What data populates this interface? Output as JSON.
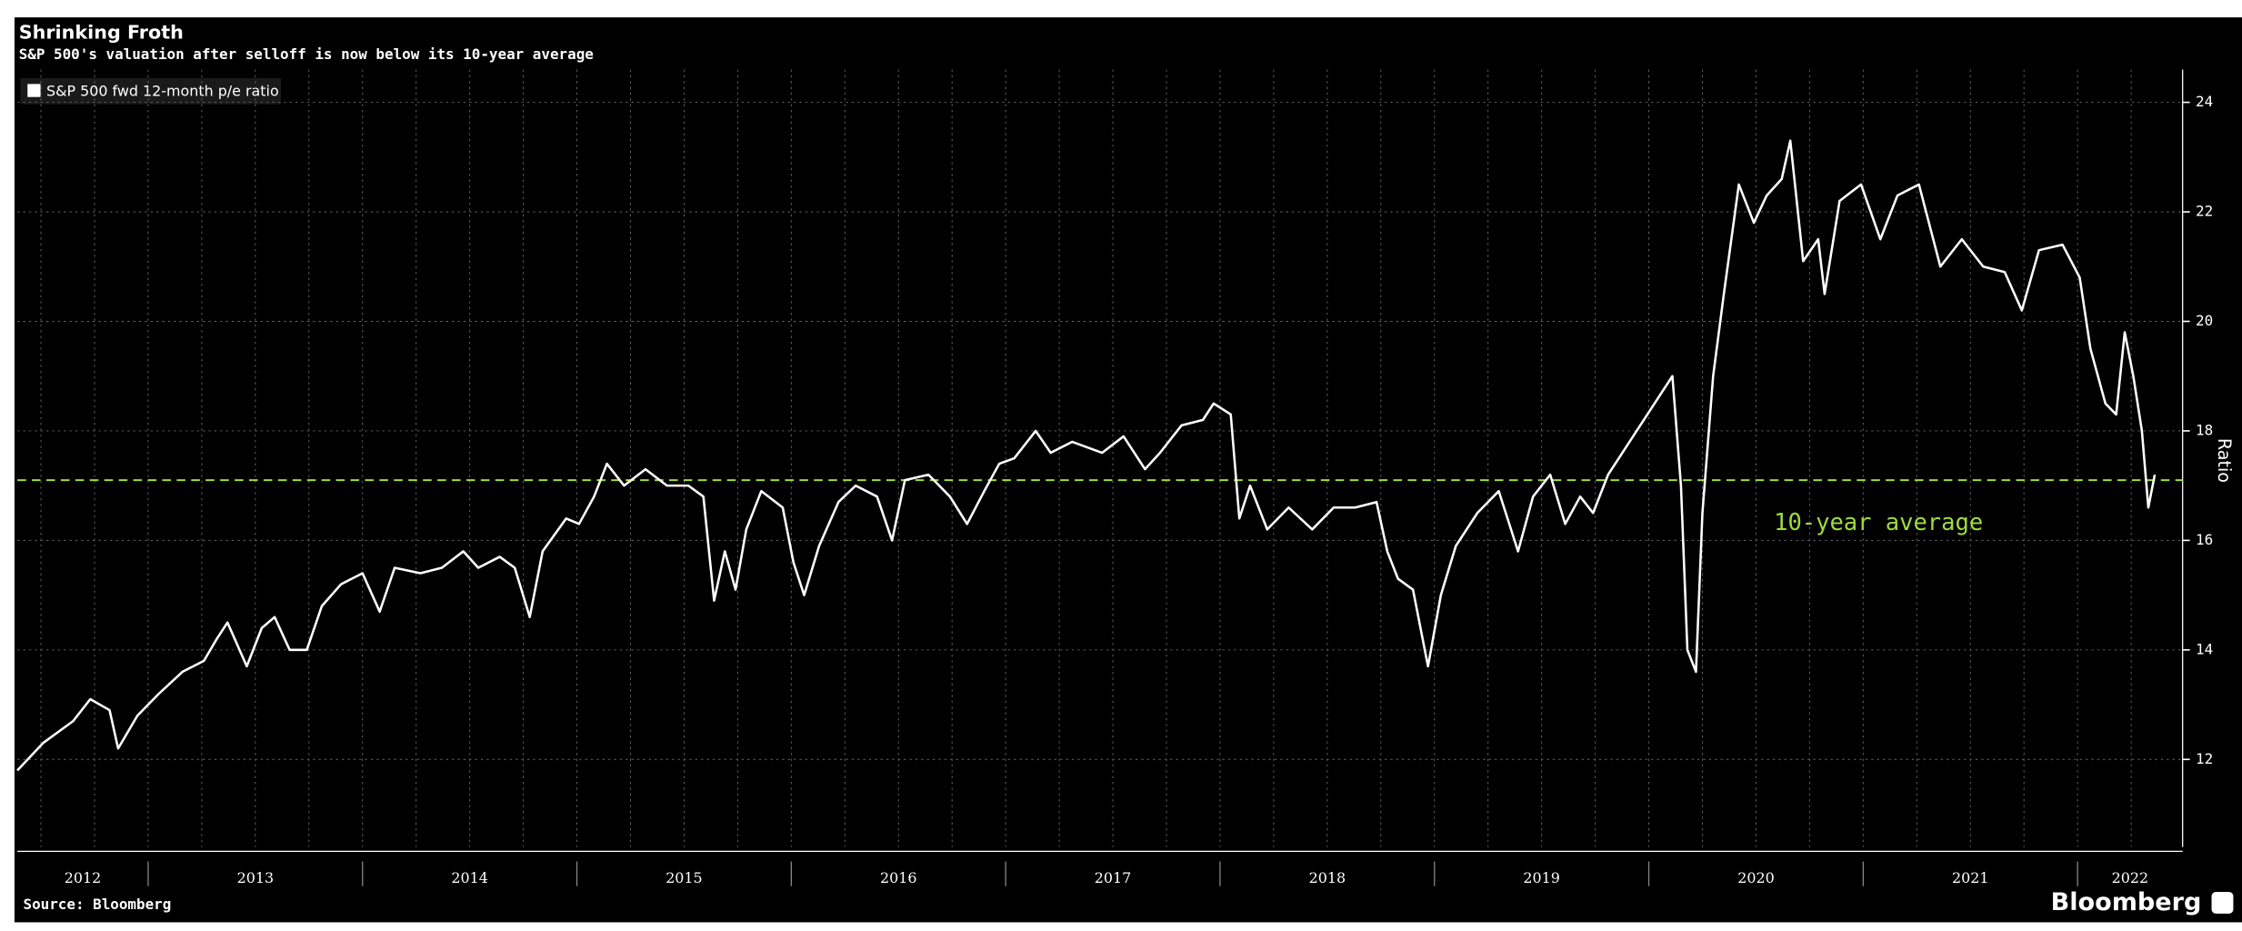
{
  "chart_data": {
    "type": "line",
    "title": "Shrinking Froth",
    "subtitle": "S&P 500's valuation after selloff is now below its 10-year average",
    "y_label": "Ratio",
    "source": "Source: Bloomberg",
    "brand": "Bloomberg",
    "xlim": [
      2012.39,
      2022.49
    ],
    "ylim": [
      10.4,
      24.6
    ],
    "yticks": [
      12,
      14,
      16,
      18,
      20,
      22,
      24
    ],
    "xticks": [
      2012.5,
      2012.75,
      2013,
      2013.25,
      2013.5,
      2013.75,
      2014,
      2014.25,
      2014.5,
      2014.75,
      2015,
      2015.25,
      2015.5,
      2015.75,
      2016,
      2016.25,
      2016.5,
      2016.75,
      2017,
      2017.25,
      2017.5,
      2017.75,
      2018,
      2018.25,
      2018.5,
      2018.75,
      2019,
      2019.25,
      2019.5,
      2019.75,
      2020,
      2020.25,
      2020.5,
      2020.75,
      2021,
      2021.25,
      2021.5,
      2021.75,
      2022,
      2022.25
    ],
    "year_labels": [
      "2012",
      "2013",
      "2014",
      "2015",
      "2016",
      "2017",
      "2018",
      "2019",
      "2020",
      "2021",
      "2022"
    ],
    "year_bounds": [
      2013,
      2014,
      2015,
      2016,
      2017,
      2018,
      2019,
      2020,
      2021,
      2022
    ],
    "grid": true,
    "reference_line": {
      "value": 17.1,
      "label": "10-year average",
      "color": "#9fdc3c"
    },
    "x": [
      2012.39,
      2012.51,
      2012.65,
      2012.73,
      2012.82,
      2012.86,
      2012.95,
      2013.05,
      2013.16,
      2013.26,
      2013.32,
      2013.37,
      2013.46,
      2013.53,
      2013.59,
      2013.66,
      2013.74,
      2013.81,
      2013.9,
      2014.0,
      2014.08,
      2014.15,
      2014.27,
      2014.37,
      2014.47,
      2014.54,
      2014.64,
      2014.71,
      2014.78,
      2014.84,
      2014.95,
      2015.01,
      2015.08,
      2015.14,
      2015.22,
      2015.32,
      2015.42,
      2015.52,
      2015.59,
      2015.64,
      2015.69,
      2015.74,
      2015.79,
      2015.86,
      2015.96,
      2016.01,
      2016.06,
      2016.13,
      2016.22,
      2016.3,
      2016.4,
      2016.47,
      2016.53,
      2016.64,
      2016.74,
      2016.82,
      2016.9,
      2016.97,
      2017.04,
      2017.14,
      2017.21,
      2017.31,
      2017.45,
      2017.55,
      2017.65,
      2017.72,
      2017.82,
      2017.92,
      2017.97,
      2018.05,
      2018.09,
      2018.14,
      2018.22,
      2018.32,
      2018.43,
      2018.53,
      2018.63,
      2018.73,
      2018.78,
      2018.83,
      2018.9,
      2018.97,
      2019.03,
      2019.1,
      2019.2,
      2019.3,
      2019.39,
      2019.46,
      2019.54,
      2019.61,
      2019.68,
      2019.74,
      2019.81,
      2019.91,
      2020.01,
      2020.11,
      2020.15,
      2020.18,
      2020.22,
      2020.25,
      2020.3,
      2020.35,
      2020.42,
      2020.49,
      2020.55,
      2020.62,
      2020.66,
      2020.72,
      2020.79,
      2020.82,
      2020.89,
      2020.99,
      2021.08,
      2021.16,
      2021.26,
      2021.36,
      2021.46,
      2021.56,
      2021.66,
      2021.74,
      2021.82,
      2021.93,
      2022.01,
      2022.06,
      2022.13,
      2022.18,
      2022.22,
      2022.26,
      2022.3,
      2022.33,
      2022.36
    ],
    "series": [
      {
        "name": "S&P 500 fwd 12-month p/e ratio",
        "color": "#ffffff",
        "values": [
          11.8,
          12.3,
          12.7,
          13.1,
          12.9,
          12.2,
          12.8,
          13.2,
          13.6,
          13.8,
          14.2,
          14.5,
          13.7,
          14.4,
          14.6,
          14.0,
          14.0,
          14.8,
          15.2,
          15.4,
          14.7,
          15.5,
          15.4,
          15.5,
          15.8,
          15.5,
          15.7,
          15.5,
          14.6,
          15.8,
          16.4,
          16.3,
          16.8,
          17.4,
          17.0,
          17.3,
          17.0,
          17.0,
          16.8,
          14.9,
          15.8,
          15.1,
          16.2,
          16.9,
          16.6,
          15.6,
          15.0,
          15.9,
          16.7,
          17.0,
          16.8,
          16.0,
          17.1,
          17.2,
          16.8,
          16.3,
          16.9,
          17.4,
          17.5,
          18.0,
          17.6,
          17.8,
          17.6,
          17.9,
          17.3,
          17.6,
          18.1,
          18.2,
          18.5,
          18.3,
          16.4,
          17.0,
          16.2,
          16.6,
          16.2,
          16.6,
          16.6,
          16.7,
          15.8,
          15.3,
          15.1,
          13.7,
          15.0,
          15.9,
          16.5,
          16.9,
          15.8,
          16.8,
          17.2,
          16.3,
          16.8,
          16.5,
          17.2,
          17.8,
          18.4,
          19.0,
          17.0,
          14.0,
          13.6,
          16.5,
          19.0,
          20.5,
          22.5,
          21.8,
          22.3,
          22.6,
          23.3,
          21.1,
          21.5,
          20.5,
          22.2,
          22.5,
          21.5,
          22.3,
          22.5,
          21.0,
          21.5,
          21.0,
          20.9,
          20.2,
          21.3,
          21.4,
          20.8,
          19.5,
          18.5,
          18.3,
          19.8,
          19.0,
          18.0,
          16.6,
          17.2
        ]
      }
    ]
  }
}
